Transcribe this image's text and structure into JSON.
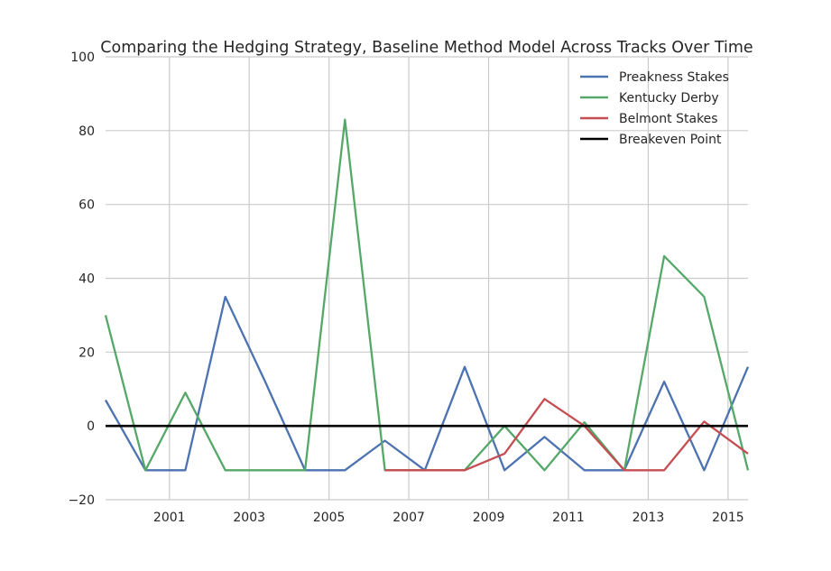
{
  "chart_data": {
    "type": "line",
    "title": "Comparing the Hedging Strategy, Baseline Method Model Across Tracks Over Time",
    "xlabel": "",
    "ylabel": "",
    "xlim": [
      1999.4,
      2015.5
    ],
    "ylim": [
      -20,
      100
    ],
    "x_ticks": [
      2001,
      2003,
      2005,
      2007,
      2009,
      2011,
      2013,
      2015
    ],
    "x_tick_labels": [
      "2001",
      "2003",
      "2005",
      "2007",
      "2009",
      "2011",
      "2013",
      "2015"
    ],
    "y_ticks": [
      -20,
      0,
      20,
      40,
      60,
      80,
      100
    ],
    "y_tick_labels": [
      "−20",
      "0",
      "20",
      "40",
      "60",
      "80",
      "100"
    ],
    "grid": true,
    "legend_position": "top-right",
    "series": [
      {
        "name": "Preakness Stakes",
        "color": "#4c72b0",
        "x": [
          1999.4,
          2000.4,
          2001.4,
          2002.4,
          2003.4,
          2004.4,
          2005.4,
          2006.4,
          2007.4,
          2008.4,
          2009.4,
          2010.4,
          2011.4,
          2012.4,
          2013.4,
          2014.4,
          2015.5
        ],
        "values": [
          7,
          -12,
          -12,
          35,
          12,
          -12,
          -12,
          -4,
          -12,
          16,
          -12,
          -3,
          -12,
          -12,
          12,
          -12,
          16
        ]
      },
      {
        "name": "Kentucky Derby",
        "color": "#55a868",
        "x": [
          1999.4,
          2000.4,
          2001.4,
          2002.4,
          2003.4,
          2004.4,
          2005.4,
          2006.4,
          2007.4,
          2008.4,
          2009.4,
          2010.4,
          2011.4,
          2012.4,
          2013.4,
          2014.4,
          2015.5
        ],
        "values": [
          30,
          -12,
          9,
          -12,
          -12,
          -12,
          83,
          -12,
          -12,
          -12,
          0,
          -12,
          1,
          -12,
          46,
          35,
          -12
        ]
      },
      {
        "name": "Belmont Stakes",
        "color": "#c44e52",
        "x": [
          2006.4,
          2007.4,
          2008.4,
          2009.4,
          2010.4,
          2011.4,
          2012.4,
          2013.4,
          2014.4,
          2015.5
        ],
        "values": [
          -12,
          -12,
          -12,
          -7.5,
          7.3,
          0,
          -12,
          -12,
          1.2,
          -7.5
        ]
      },
      {
        "name": "Breakeven Point",
        "color": "#000000",
        "x": [
          1999.4,
          2015.5
        ],
        "values": [
          0,
          0
        ]
      }
    ]
  }
}
